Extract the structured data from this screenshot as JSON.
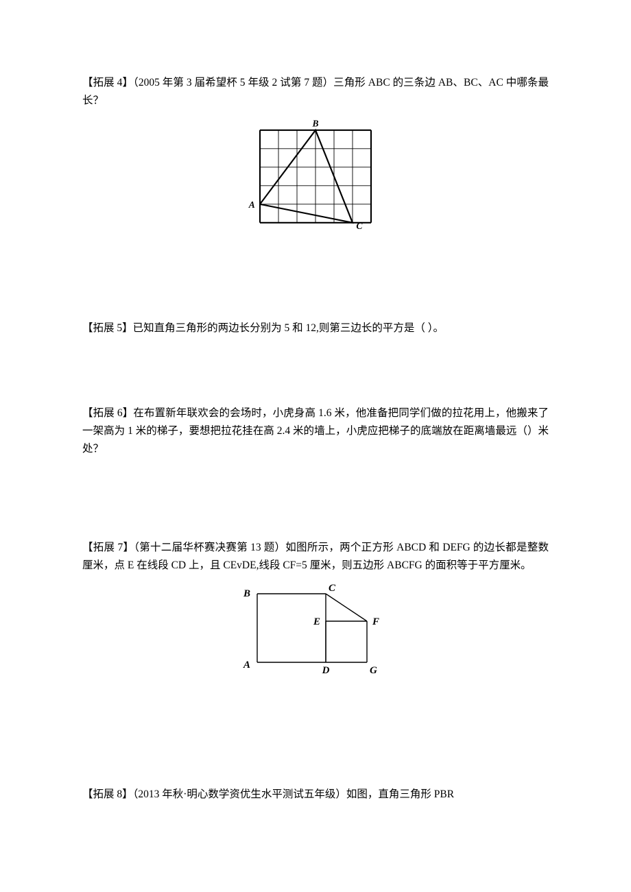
{
  "problems": {
    "p4": {
      "text": "【拓展 4】（2005 年第 3 届希望杯 5 年级 2 试第 7 题）三角形 ABC 的三条边 AB、BC、AC 中哪条最长？",
      "figure": {
        "type": "grid-triangle",
        "cols": 6,
        "rows": 5,
        "cell": 30,
        "grid_color": "#000000",
        "grid_stroke": 1,
        "outer_stroke": 2.4,
        "triangle_stroke": 2.4,
        "triangle_color": "#000000",
        "A": [
          0,
          4
        ],
        "B": [
          3,
          0
        ],
        "C": [
          5,
          5
        ],
        "label_A": "A",
        "label_B": "B",
        "label_C": "C",
        "label_fontsize": 15
      }
    },
    "p5": {
      "text": "【拓展 5】已知直角三角形的两边长分别为 5 和 12,则第三边长的平方是（ ）。"
    },
    "p6": {
      "text": "【拓展 6】在布置新年联欢会的会场时，小虎身高 1.6 米，他准备把同学们做的拉花用上，他搬来了一架高为 1 米的梯子，要想把拉花挂在高 2.4 米的墙上，小虎应把梯子的底端放在距离墙最远（）米处？"
    },
    "p7": {
      "text": "【拓展 7】（第十二届华杯赛决赛第 13 题）如图所示，两个正方形 ABCD 和 DEFG 的边长都是整数厘米，点 E 在线段 CD 上，且 CEvDE,线段 CF=5 厘米，则五边形 ABCFG 的面积等于平方厘米。",
      "figure": {
        "type": "two-squares",
        "big": 100,
        "small": 60,
        "stroke_color": "#000000",
        "stroke_width": 1.4,
        "labels": {
          "A": "A",
          "B": "B",
          "C": "C",
          "D": "D",
          "E": "E",
          "F": "F",
          "G": "G"
        },
        "label_fontsize": 15
      }
    },
    "p8": {
      "text": "【拓展 8】（2013 年秋·明心数学资优生水平测试五年级）如图，直角三角形 PBR"
    }
  }
}
